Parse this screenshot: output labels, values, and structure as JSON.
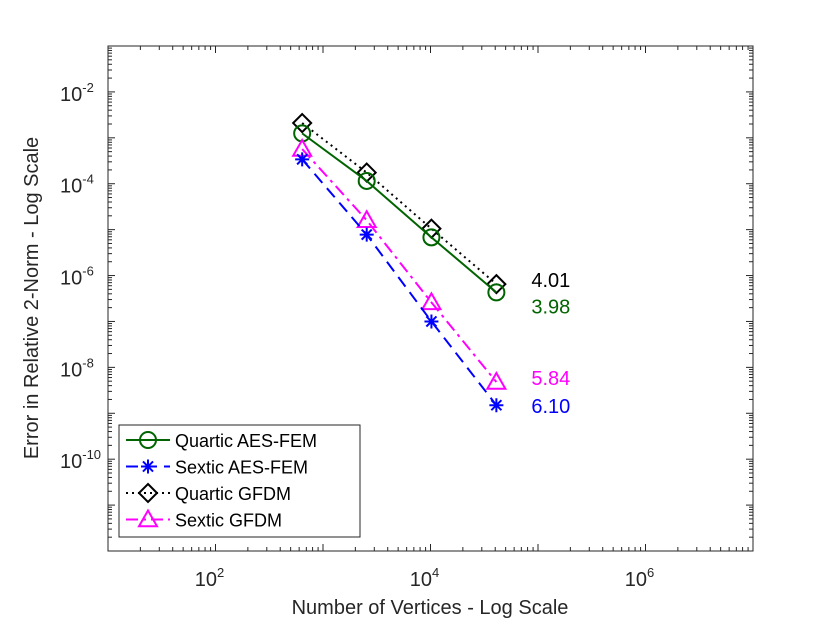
{
  "chart_data": {
    "type": "line",
    "xlabel": "Number of Vertices - Log Scale",
    "ylabel": "Error in Relative 2-Norm - Log Scale",
    "x_scale": "log",
    "y_scale": "log",
    "xlim": [
      10,
      10000000
    ],
    "ylim": [
      1e-12,
      0.1
    ],
    "x_ticks": [
      {
        "value": 100,
        "base": "10",
        "exp": "2"
      },
      {
        "value": 10000,
        "base": "10",
        "exp": "4"
      },
      {
        "value": 1000000,
        "base": "10",
        "exp": "6"
      }
    ],
    "y_ticks": [
      {
        "value": 0.01,
        "base": "10",
        "exp": "-2"
      },
      {
        "value": 0.0001,
        "base": "10",
        "exp": "-4"
      },
      {
        "value": 1e-06,
        "base": "10",
        "exp": "-6"
      },
      {
        "value": 1e-08,
        "base": "10",
        "exp": "-8"
      },
      {
        "value": 1e-10,
        "base": "10",
        "exp": "-10"
      }
    ],
    "grid": false,
    "legend_position": "bottom-left",
    "series": [
      {
        "name": "Quartic AES-FEM",
        "color": "#006400",
        "dash": "solid",
        "marker": "circle",
        "x": [
          640,
          2550,
          10200,
          41000
        ],
        "y": [
          0.00125,
          0.000115,
          6.8e-06,
          4.3e-07
        ]
      },
      {
        "name": "Sextic AES-FEM",
        "color": "#0000ff",
        "dash": "dashed",
        "marker": "star",
        "x": [
          640,
          2550,
          10200,
          41000
        ],
        "y": [
          0.00034,
          7.8e-06,
          1e-07,
          1.5e-09
        ]
      },
      {
        "name": "Quartic GFDM",
        "color": "#000000",
        "dash": "dotted",
        "marker": "diamond",
        "x": [
          640,
          2550,
          10200,
          41000
        ],
        "y": [
          0.0021,
          0.000175,
          1.05e-05,
          6.5e-07
        ]
      },
      {
        "name": "Sextic GFDM",
        "color": "#ff00ff",
        "dash": "dashdot",
        "marker": "triangle",
        "x": [
          640,
          2550,
          10200,
          41000
        ],
        "y": [
          0.00057,
          1.6e-05,
          2.6e-07,
          4.8e-09
        ]
      }
    ],
    "annotations": [
      {
        "text": "4.01",
        "color": "#000000",
        "series": "Quartic GFDM"
      },
      {
        "text": "3.98",
        "color": "#006400",
        "series": "Quartic AES-FEM"
      },
      {
        "text": "5.84",
        "color": "#ff00ff",
        "series": "Sextic GFDM"
      },
      {
        "text": "6.10",
        "color": "#0000ff",
        "series": "Sextic AES-FEM"
      }
    ]
  }
}
